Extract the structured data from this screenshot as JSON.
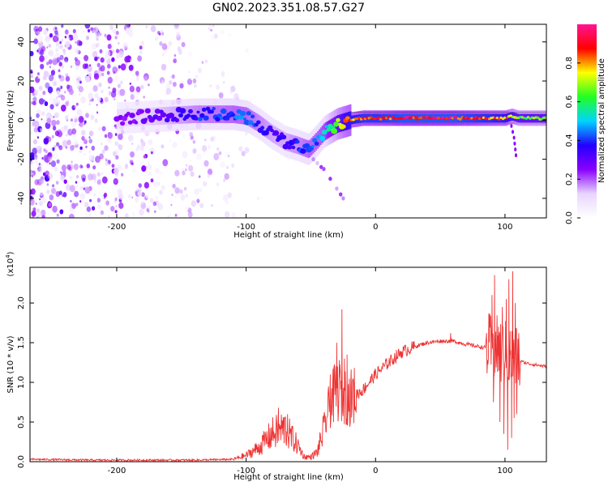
{
  "title": "GN02.2023.351.08.57.G27",
  "chart_data": [
    {
      "type": "heatmap",
      "xlabel": "Height of straight line (km)",
      "ylabel": "Frequency (Hz)",
      "xlim": [
        -267,
        132
      ],
      "ylim": [
        -50,
        49
      ],
      "x_ticks": [
        -200,
        -100,
        0,
        100
      ],
      "y_ticks": [
        -40,
        -20,
        0,
        20,
        40
      ],
      "colorbar": {
        "label": "Normalized spectral amplitude",
        "range": [
          0,
          1
        ],
        "ticks": [
          0.0,
          0.2,
          0.4,
          0.6,
          0.8
        ],
        "colormap": [
          "#ffffff",
          "#e8d5ff",
          "#8a00ff",
          "#2200ff",
          "#00d4ff",
          "#22ff22",
          "#ffff00",
          "#ff0000",
          "#ff1493"
        ]
      },
      "ridge": {
        "x": [
          -200,
          -170,
          -140,
          -110,
          -100,
          -90,
          -80,
          -70,
          -60,
          -52,
          -45,
          -40,
          -35,
          -30,
          -25,
          -20,
          -10,
          0,
          20,
          40,
          60,
          80,
          100,
          105,
          110,
          132
        ],
        "y": [
          1,
          2,
          3,
          3,
          2,
          -2,
          -7,
          -11,
          -13,
          -15,
          -10,
          -6,
          -4,
          -2,
          -1,
          0,
          1,
          1,
          1,
          1,
          1,
          1,
          1,
          2,
          1,
          1
        ],
        "amplitude": [
          0.25,
          0.3,
          0.4,
          0.45,
          0.45,
          0.4,
          0.35,
          0.35,
          0.4,
          0.45,
          0.45,
          0.5,
          0.6,
          0.7,
          0.8,
          0.85,
          0.9,
          0.9,
          0.95,
          0.95,
          0.95,
          0.9,
          0.85,
          0.75,
          0.7,
          0.7
        ]
      },
      "noise_region_x": [
        -267,
        -110
      ]
    },
    {
      "type": "line",
      "xlabel": "Height of straight line (km)",
      "ylabel": "SNR (10 * v/v)",
      "scale_label": "(x10^4)",
      "xlim": [
        -267,
        132
      ],
      "ylim": [
        0,
        2.45
      ],
      "x_ticks": [
        -200,
        -100,
        0,
        100
      ],
      "y_ticks": [
        0.0,
        0.5,
        1.0,
        1.5,
        2.0
      ],
      "series": [
        {
          "color": "#ee3333",
          "envelope_x": [
            -267,
            -220,
            -180,
            -140,
            -110,
            -100,
            -90,
            -80,
            -70,
            -60,
            -55,
            -50,
            -45,
            -40,
            -35,
            -30,
            -25,
            -20,
            -10,
            0,
            10,
            20,
            30,
            40,
            50,
            60,
            70,
            80,
            90,
            95,
            100,
            105,
            110,
            115,
            120,
            132
          ],
          "envelope_y": [
            0.03,
            0.02,
            0.02,
            0.02,
            0.03,
            0.08,
            0.18,
            0.35,
            0.42,
            0.2,
            0.06,
            0.06,
            0.12,
            0.4,
            0.75,
            0.9,
            0.85,
            0.8,
            0.9,
            1.1,
            1.25,
            1.38,
            1.45,
            1.5,
            1.52,
            1.52,
            1.48,
            1.45,
            1.42,
            1.4,
            1.35,
            1.3,
            1.28,
            1.25,
            1.23,
            1.2
          ],
          "spikes": [
            {
              "x": -75,
              "y": 0.68
            },
            {
              "x": -72,
              "y": 0.52
            },
            {
              "x": -68,
              "y": 0.6
            },
            {
              "x": -35,
              "y": 1.1
            },
            {
              "x": -32,
              "y": 1.2
            },
            {
              "x": -30,
              "y": 1.5
            },
            {
              "x": -28,
              "y": 1.28
            },
            {
              "x": -26,
              "y": 1.92
            },
            {
              "x": -24,
              "y": 1.3
            },
            {
              "x": -22,
              "y": 1.35
            },
            {
              "x": 58,
              "y": 1.62
            },
            {
              "x": 88,
              "y": 1.85
            },
            {
              "x": 90,
              "y": 2.1
            },
            {
              "x": 92,
              "y": 2.35
            },
            {
              "x": 95,
              "y": 1.7
            },
            {
              "x": 98,
              "y": 1.95
            },
            {
              "x": 101,
              "y": 2.05
            },
            {
              "x": 103,
              "y": 2.3
            },
            {
              "x": 104,
              "y": 1.35
            },
            {
              "x": 106,
              "y": 2.4
            },
            {
              "x": 108,
              "y": 2.0
            },
            {
              "x": 110,
              "y": 1.55
            }
          ],
          "dips": [
            {
              "x": 91,
              "y": 0.75
            },
            {
              "x": 96,
              "y": 0.5
            },
            {
              "x": 99,
              "y": 0.35
            },
            {
              "x": 102,
              "y": 0.15
            },
            {
              "x": 105,
              "y": 0.3
            },
            {
              "x": 107,
              "y": 0.55
            },
            {
              "x": 109,
              "y": 0.6
            }
          ]
        }
      ]
    }
  ]
}
